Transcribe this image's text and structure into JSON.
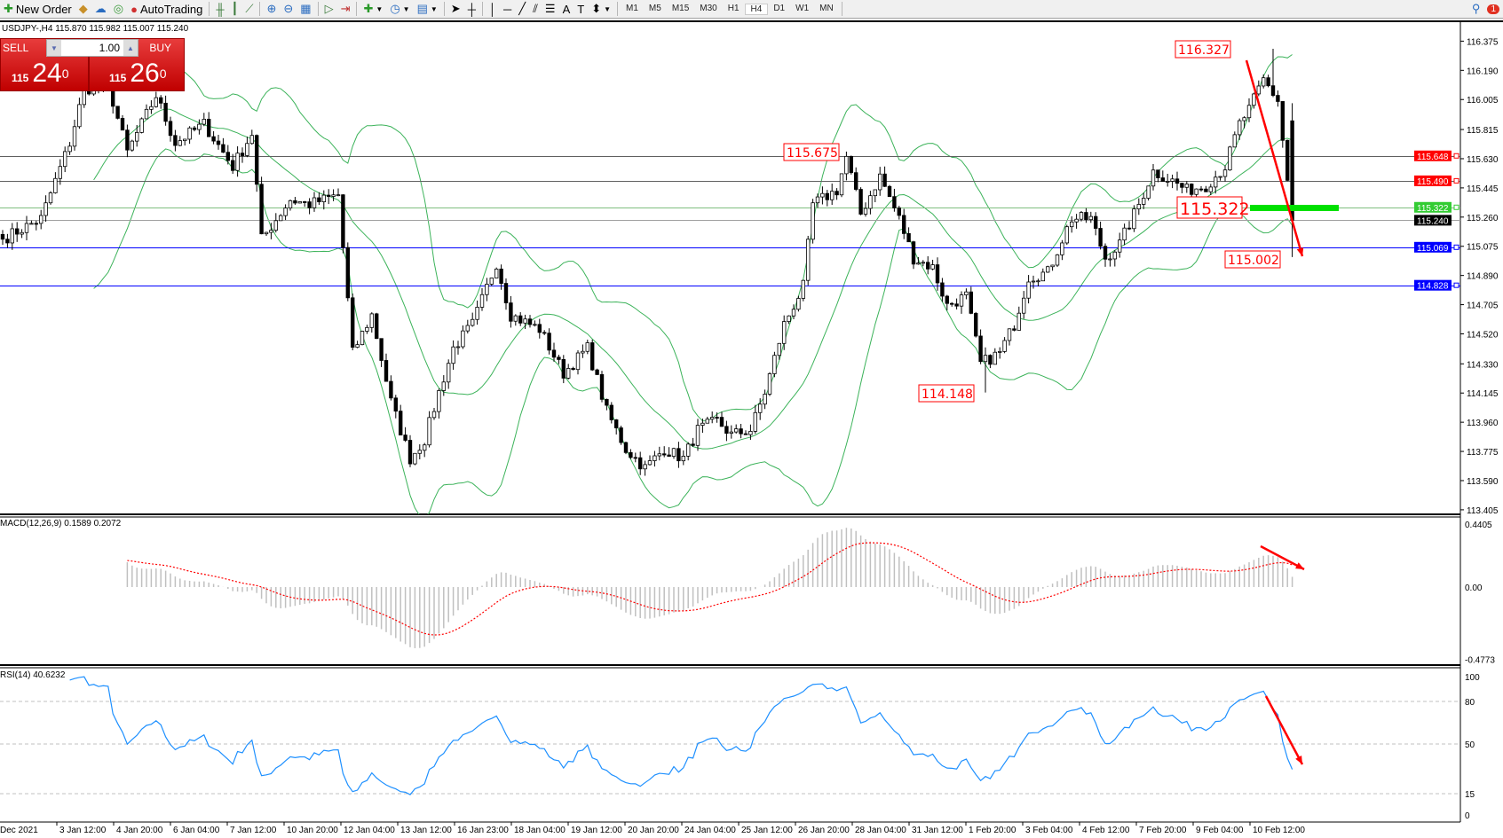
{
  "toolbar": {
    "new_order": "New Order",
    "auto_trading": "AutoTrading",
    "timeframes": [
      "M1",
      "M5",
      "M15",
      "M30",
      "H1",
      "H4",
      "D1",
      "W1",
      "MN"
    ],
    "active_timeframe": "H4",
    "notification_count": "1"
  },
  "chart": {
    "title": "USDJPY-,H4  115.870 115.982 115.007 115.240",
    "colors": {
      "bull": "#ffffff",
      "bear": "#000000",
      "bands": "#3cb35a",
      "support": "#0000ff",
      "resistance": "#ff0000",
      "green_level": "#00e000",
      "macd_signal": "#ff0000",
      "macd_hist": "#c0c0c0",
      "rsi": "#1e90ff",
      "arrow": "#ff0000"
    }
  },
  "trade_panel": {
    "sell_label": "SELL",
    "buy_label": "BUY",
    "lot": "1.00",
    "sell_prefix": "115",
    "sell_big": "24",
    "sell_sup": "0",
    "buy_prefix": "115",
    "buy_big": "26",
    "buy_sup": "0"
  },
  "chart_data": {
    "type": "candlestick",
    "symbol": "USDJPY-",
    "timeframe": "H4",
    "ohlc_last": {
      "open": 115.87,
      "high": 115.982,
      "low": 115.007,
      "close": 115.24
    },
    "price_axis": {
      "range": [
        113.405,
        116.375
      ],
      "ticks": [
        "116.375",
        "116.190",
        "116.005",
        "115.815",
        "115.630",
        "115.445",
        "115.260",
        "115.075",
        "114.890",
        "114.705",
        "114.520",
        "114.330",
        "114.145",
        "113.960",
        "113.775",
        "113.590",
        "113.405"
      ]
    },
    "close_keypoints": {
      "bar": [
        0,
        8,
        14,
        17,
        22,
        26,
        32,
        36,
        42,
        48,
        52,
        54,
        60,
        64,
        70,
        73,
        77,
        81,
        85,
        88,
        91,
        94,
        98,
        103,
        106,
        112,
        117,
        122,
        126,
        130,
        134,
        138,
        142,
        145,
        149,
        152,
        156,
        159,
        163,
        167,
        169,
        174,
        176,
        179,
        183,
        187,
        190,
        194,
        197,
        201,
        204,
        208,
        211,
        214,
        218,
        221,
        223,
        227,
        230,
        233,
        237,
        240,
        244,
        247,
        251,
        255,
        258,
        260,
        263,
        266,
        269
      ],
      "close": [
        115.12,
        115.25,
        115.73,
        116.07,
        116.1,
        115.67,
        116.03,
        115.73,
        115.85,
        115.58,
        115.79,
        115.12,
        115.37,
        115.34,
        115.4,
        114.4,
        114.64,
        114.09,
        113.73,
        113.85,
        114.15,
        114.43,
        114.58,
        114.97,
        114.64,
        114.55,
        114.27,
        114.43,
        114.03,
        113.79,
        113.67,
        113.79,
        113.73,
        113.91,
        113.97,
        113.88,
        113.91,
        114.15,
        114.58,
        114.82,
        115.34,
        115.43,
        115.64,
        115.28,
        115.52,
        115.25,
        115.0,
        114.94,
        114.7,
        114.76,
        114.33,
        114.4,
        114.58,
        114.88,
        114.91,
        115.12,
        115.25,
        115.25,
        115.0,
        115.09,
        115.34,
        115.55,
        115.49,
        115.43,
        115.46,
        115.58,
        115.85,
        115.94,
        116.13,
        116.0,
        115.24
      ]
    },
    "levels": [
      {
        "price": "115.648",
        "color": "#ff0000",
        "line": "#606060"
      },
      {
        "price": "115.490",
        "color": "#ff0000",
        "line": "#606060"
      },
      {
        "price": "115.322",
        "color": "#33cc33",
        "line": "#7fbf7f"
      },
      {
        "price": "115.240",
        "color": "#000000",
        "line": "#a0a0a0"
      },
      {
        "price": "115.069",
        "color": "#0000ff",
        "line": "#0000ff"
      },
      {
        "price": "114.828",
        "color": "#0000ff",
        "line": "#0000ff"
      }
    ],
    "annotations": [
      "116.327",
      "115.675",
      "115.322",
      "115.002",
      "114.148"
    ],
    "date_labels": [
      "Dec 2021",
      "3 Jan 12:00",
      "4 Jan 20:00",
      "6 Jan 04:00",
      "7 Jan 12:00",
      "10 Jan 20:00",
      "12 Jan 04:00",
      "13 Jan 12:00",
      "16 Jan 23:00",
      "18 Jan 04:00",
      "19 Jan 12:00",
      "20 Jan 20:00",
      "24 Jan 04:00",
      "25 Jan 12:00",
      "26 Jan 20:00",
      "28 Jan 04:00",
      "31 Jan 12:00",
      "1 Feb 20:00",
      "3 Feb 04:00",
      "4 Feb 12:00",
      "7 Feb 20:00",
      "9 Feb 04:00",
      "10 Feb 12:00"
    ],
    "macd": {
      "label": "MACD(12,26,9) 0.1589 0.2072",
      "range": [
        -0.4773,
        0.4405
      ],
      "ticks": [
        "0.4405",
        "0.00",
        "-0.4773"
      ]
    },
    "rsi": {
      "label": "RSI(14) 40.6232",
      "range": [
        0,
        100
      ],
      "levels": [
        80,
        50,
        15
      ],
      "ticks": [
        "100",
        "80",
        "50",
        "15",
        "0"
      ]
    }
  }
}
